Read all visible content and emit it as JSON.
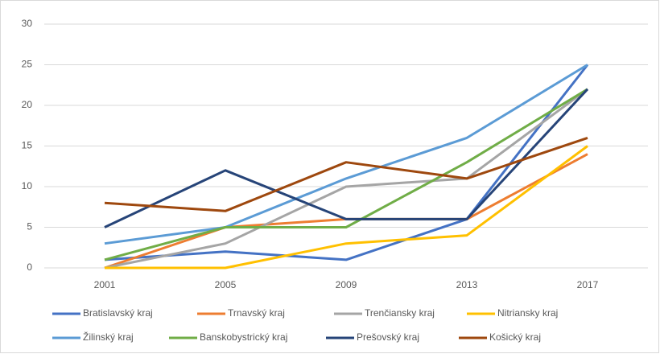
{
  "chart_data": {
    "type": "line",
    "categories": [
      "2001",
      "2005",
      "2009",
      "2013",
      "2017"
    ],
    "ylim": [
      0,
      30
    ],
    "yticks": [
      0,
      5,
      10,
      15,
      20,
      25,
      30
    ],
    "grid": true,
    "legend": "bottom",
    "series": [
      {
        "name": "Bratislavský kraj",
        "color": "#4472c4",
        "values": [
          1,
          2,
          1,
          6,
          25
        ]
      },
      {
        "name": "Trnavský kraj",
        "color": "#ed7d31",
        "values": [
          0,
          5,
          6,
          6,
          14
        ]
      },
      {
        "name": "Trenčiansky kraj",
        "color": "#a5a5a5",
        "values": [
          0,
          3,
          10,
          11,
          22
        ]
      },
      {
        "name": "Nitriansky kraj",
        "color": "#ffc000",
        "values": [
          0,
          0,
          3,
          4,
          15
        ]
      },
      {
        "name": "Žilinský kraj",
        "color": "#5b9bd5",
        "values": [
          3,
          5,
          11,
          16,
          25
        ]
      },
      {
        "name": "Banskobystrický kraj",
        "color": "#70ad47",
        "values": [
          1,
          5,
          5,
          13,
          22
        ]
      },
      {
        "name": "Prešovský kraj",
        "color": "#264478",
        "values": [
          5,
          12,
          6,
          6,
          22
        ]
      },
      {
        "name": "Košický kraj",
        "color": "#9e480e",
        "values": [
          8,
          7,
          13,
          11,
          16
        ]
      }
    ]
  }
}
